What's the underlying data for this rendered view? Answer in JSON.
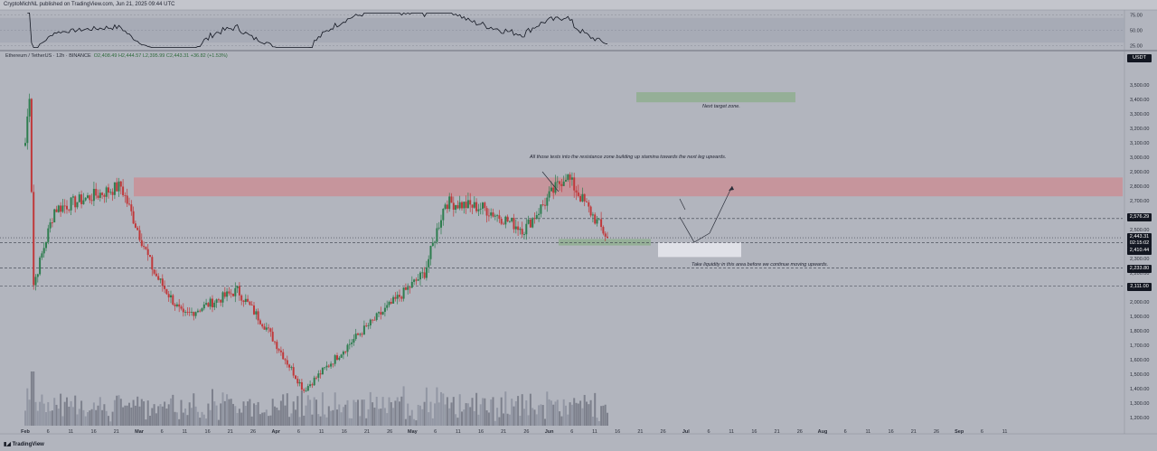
{
  "header": {
    "publisher": "CryptoMichNL published on TradingView.com, Jun 21, 2025 09:44 UTC"
  },
  "symbol_bar": {
    "name": "Ethereum / TetherUS · 12h · BINANCE",
    "ohlc": "O2,408.49 H2,444.57 L2,395.99 C2,443.31 +36.82 (+1.53%)"
  },
  "currency_label": "USDT",
  "annotations": {
    "resistance_note": "All those tests into the resistance zone building up stamina towards the next leg upwards.",
    "target_note": "Next target zone.",
    "liquidity_note": "Take liquidity in this area before we continue moving upwards."
  },
  "price_tags": [
    {
      "label": "2,576.29",
      "style": "dark"
    },
    {
      "label": "2,443.31",
      "style": "dark"
    },
    {
      "label": "02:15:02",
      "style": "dark"
    },
    {
      "label": "2,410.44",
      "style": "dark"
    },
    {
      "label": "2,233.80",
      "style": "dark"
    },
    {
      "label": "2,111.00",
      "style": "dark"
    }
  ],
  "footer": {
    "brand": "TradingView"
  },
  "colors": {
    "background": "#b2b5be",
    "up_candle": "#2e7d4f",
    "down_candle": "#c0393b",
    "resistance_zone": "#c98f97",
    "target_zone": "#8fae91",
    "support_zone": "#8fae91",
    "liquidity_zone": "#e4e6ec",
    "rsi_line": "#131722"
  },
  "chart_data": [
    {
      "type": "candlestick",
      "ylim": [
        1150,
        3650
      ],
      "yticks": [
        1200,
        1300,
        1400,
        1500,
        1600,
        1700,
        1800,
        1900,
        2000,
        2100,
        2200,
        2300,
        2400,
        2500,
        2600,
        2700,
        2800,
        2900,
        3000,
        3100,
        3200,
        3300,
        3400,
        3500
      ],
      "xticks": [
        "Feb",
        "6",
        "11",
        "16",
        "21",
        "Mar",
        "6",
        "11",
        "16",
        "21",
        "26",
        "Apr",
        "6",
        "11",
        "16",
        "21",
        "26",
        "May",
        "6",
        "11",
        "16",
        "21",
        "26",
        "Jun",
        "6",
        "11",
        "16",
        "21",
        "26",
        "Jul",
        "6",
        "11",
        "16",
        "21",
        "26",
        "Aug",
        "6",
        "11",
        "16",
        "21",
        "26",
        "Sep",
        "6",
        "11"
      ],
      "dates_range": [
        "2025-02-01",
        "2025-06-21"
      ],
      "key_points": [
        {
          "date": "Feb 1",
          "close": 3100
        },
        {
          "date": "Feb 2",
          "high": 3450
        },
        {
          "date": "Feb 3",
          "low": 2120
        },
        {
          "date": "Feb 8",
          "close": 2640
        },
        {
          "date": "Feb 24",
          "close": 2800
        },
        {
          "date": "Mar 4",
          "close": 2200
        },
        {
          "date": "Mar 11",
          "close": 1900
        },
        {
          "date": "Mar 24",
          "close": 2080
        },
        {
          "date": "Mar 31",
          "close": 1820
        },
        {
          "date": "Apr 9",
          "low": 1390
        },
        {
          "date": "Apr 22",
          "close": 1770
        },
        {
          "date": "May 8",
          "close": 2200
        },
        {
          "date": "May 13",
          "close": 2690
        },
        {
          "date": "May 22",
          "close": 2650
        },
        {
          "date": "Jun 1",
          "close": 2500
        },
        {
          "date": "Jun 11",
          "high": 2880
        },
        {
          "date": "Jun 21",
          "close": 2443.31
        }
      ],
      "zones": [
        {
          "name": "resistance",
          "from": 2730,
          "to": 2860
        },
        {
          "name": "target",
          "from": 3380,
          "to": 3450
        },
        {
          "name": "support",
          "from": 2390,
          "to": 2435
        },
        {
          "name": "liquidity",
          "from": 2310,
          "to": 2410
        }
      ],
      "levels": [
        2576.29,
        2443.31,
        2410.44,
        2233.8,
        2111.0
      ],
      "projection": {
        "to_price": 2800
      }
    },
    {
      "type": "line",
      "name": "RSI",
      "ylim": [
        20,
        80
      ],
      "yticks": [
        25,
        50,
        75
      ],
      "band": [
        30,
        70
      ]
    }
  ]
}
